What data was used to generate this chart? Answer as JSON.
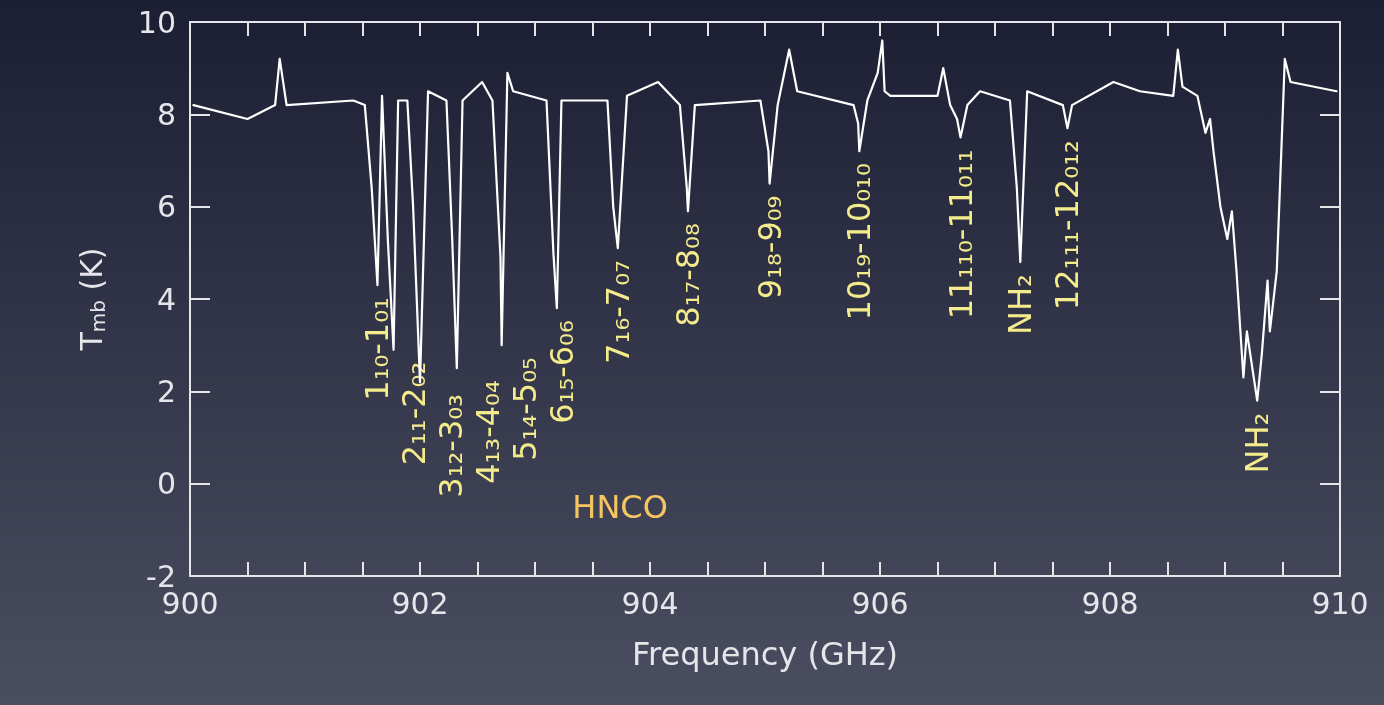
{
  "chart_data": {
    "type": "line",
    "xlabel": "Frequency (GHz)",
    "ylabel": "T$_{mb}$ (K)",
    "xlim": [
      900,
      910
    ],
    "ylim": [
      -2,
      10
    ],
    "xticks": [
      900,
      {
        "value": 900.5,
        "label": null
      },
      {
        "value": 901,
        "label": null
      },
      {
        "value": 901.5,
        "label": null
      },
      902,
      {
        "value": 902.5,
        "label": null
      },
      {
        "value": 903,
        "label": null
      },
      {
        "value": 903.5,
        "label": null
      },
      904,
      {
        "value": 904.5,
        "label": null
      },
      {
        "value": 905,
        "label": null
      },
      {
        "value": 905.5,
        "label": null
      },
      906,
      {
        "value": 906.5,
        "label": null
      },
      {
        "value": 907,
        "label": null
      },
      {
        "value": 907.5,
        "label": null
      },
      908,
      {
        "value": 908.5,
        "label": null
      },
      {
        "value": 909,
        "label": null
      },
      {
        "value": 909.5,
        "label": null
      },
      910
    ],
    "yticks": [
      -2,
      0,
      2,
      4,
      6,
      8,
      10
    ],
    "marker": "none",
    "series": [
      {
        "color": "#ffffff",
        "x": [
          900.03,
          900.5,
          900.74,
          900.78,
          900.84,
          901.42,
          901.52,
          901.58,
          901.63,
          901.67,
          901.72,
          901.77,
          901.81,
          901.89,
          901.94,
          902.0,
          902.07,
          902.23,
          902.28,
          902.32,
          902.37,
          902.54,
          902.63,
          902.7,
          902.71,
          902.76,
          902.81,
          903.1,
          903.16,
          903.19,
          903.23,
          903.57,
          903.63,
          903.68,
          903.72,
          903.8,
          904.07,
          904.26,
          904.32,
          904.33,
          904.39,
          904.96,
          905.03,
          905.04,
          905.11,
          905.21,
          905.28,
          905.77,
          905.81,
          905.82,
          905.89,
          905.98,
          906.02,
          906.04,
          906.09,
          906.5,
          906.55,
          906.61,
          906.67,
          906.7,
          906.76,
          906.87,
          907.13,
          907.19,
          907.22,
          907.28,
          907.59,
          907.63,
          907.67,
          908.03,
          908.26,
          908.55,
          908.59,
          908.63,
          908.76,
          908.83,
          908.87,
          908.9,
          908.96,
          909.02,
          909.06,
          909.1,
          909.16,
          909.19,
          909.28,
          909.32,
          909.37,
          909.39,
          909.45,
          909.52,
          909.57,
          909.97
        ],
        "values": [
          8.2,
          7.9,
          8.2,
          9.2,
          8.2,
          8.3,
          8.2,
          6.4,
          4.3,
          8.4,
          5.3,
          2.9,
          8.3,
          8.3,
          6.0,
          2.2,
          8.5,
          8.3,
          5.3,
          2.5,
          8.3,
          8.7,
          8.3,
          4.9,
          3.0,
          8.9,
          8.5,
          8.3,
          5.0,
          3.8,
          8.3,
          8.3,
          8.3,
          6.0,
          5.1,
          8.4,
          8.7,
          8.2,
          6.4,
          5.9,
          8.2,
          8.3,
          7.2,
          6.5,
          8.2,
          9.4,
          8.5,
          8.2,
          7.8,
          7.2,
          8.3,
          8.9,
          9.6,
          8.5,
          8.4,
          8.4,
          9.0,
          8.2,
          7.9,
          7.5,
          8.2,
          8.5,
          8.3,
          6.4,
          4.8,
          8.5,
          8.2,
          7.7,
          8.2,
          8.7,
          8.5,
          8.4,
          9.4,
          8.6,
          8.4,
          7.6,
          7.9,
          7.2,
          6.0,
          5.3,
          5.9,
          4.6,
          2.3,
          3.3,
          1.8,
          2.8,
          4.4,
          3.3,
          4.6,
          9.2,
          8.7,
          8.5
        ]
      }
    ],
    "annotations": [
      {
        "text": "1₁₀-1₀₁",
        "x": 901.63,
        "y": 4.3
      },
      {
        "text": "2₁₁-2₀₂",
        "x": 901.77,
        "y": 2.9
      },
      {
        "text": "3₁₂-3₀₃",
        "x": 902.0,
        "y": 2.2
      },
      {
        "text": "4₁₃-4₀₄",
        "x": 902.32,
        "y": 2.5
      },
      {
        "text": "5₁₄-5₀₅",
        "x": 902.71,
        "y": 3.0
      },
      {
        "text": "6₁₅-6₀₆",
        "x": 903.19,
        "y": 3.8
      },
      {
        "text": "7₁₆-7₀₇",
        "x": 903.72,
        "y": 5.1
      },
      {
        "text": "8₁₇-8₀₈",
        "x": 904.33,
        "y": 5.9
      },
      {
        "text": "9₁₈-9₀₉",
        "x": 905.04,
        "y": 6.5
      },
      {
        "text": "10₁₉-10₀₁₀",
        "x": 905.82,
        "y": 7.2
      },
      {
        "text": "11₁₁₀-11₀₁₁",
        "x": 906.7,
        "y": 7.5
      },
      {
        "text": "NH₂",
        "x": 907.22,
        "y": 4.8
      },
      {
        "text": "12₁₁₁-12₀₁₂",
        "x": 907.63,
        "y": 7.7
      },
      {
        "text": "NH₂",
        "x": 909.28,
        "y": 1.8
      },
      "HNCO"
    ]
  }
}
